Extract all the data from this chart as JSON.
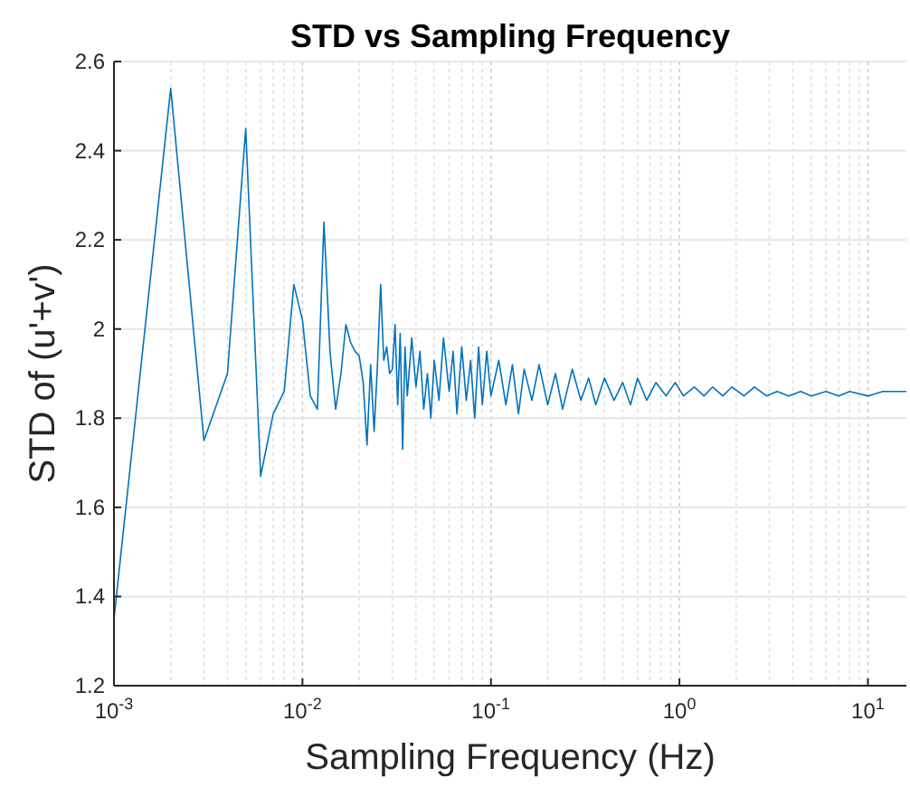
{
  "chart_data": {
    "type": "line",
    "title": "STD  vs Sampling Frequency",
    "xlabel": "Sampling Frequency (Hz)",
    "ylabel": "STD of (u'+v')",
    "log": "x",
    "grid": true,
    "xlim": [
      0.001,
      16
    ],
    "ylim": [
      1.2,
      2.6
    ],
    "xticks": [
      {
        "value": 0.001,
        "label": "10$^{-3}$"
      },
      {
        "value": 0.01,
        "label": "10$^{-2}$"
      },
      {
        "value": 0.1,
        "label": "10$^{-1}$"
      },
      {
        "value": 1,
        "label": "10$^{0}$"
      },
      {
        "value": 10,
        "label": "10$^{1}$"
      }
    ],
    "yticks": [
      1.2,
      1.4,
      1.6,
      1.8,
      2,
      2.2,
      2.4,
      2.6
    ],
    "series": [
      {
        "color": "#0072bd",
        "x": [
          0.001,
          0.002,
          0.003,
          0.004,
          0.005,
          0.006,
          0.007,
          0.008,
          0.009,
          0.01,
          0.011,
          0.012,
          0.013,
          0.014,
          0.015,
          0.016,
          0.017,
          0.018,
          0.019,
          0.02,
          0.021,
          0.022,
          0.023,
          0.024,
          0.025,
          0.026,
          0.027,
          0.028,
          0.029,
          0.03,
          0.031,
          0.032,
          0.033,
          0.034,
          0.035,
          0.036,
          0.038,
          0.04,
          0.042,
          0.044,
          0.046,
          0.048,
          0.05,
          0.053,
          0.056,
          0.06,
          0.063,
          0.066,
          0.07,
          0.074,
          0.078,
          0.082,
          0.086,
          0.09,
          0.095,
          0.1,
          0.11,
          0.12,
          0.13,
          0.14,
          0.15,
          0.165,
          0.18,
          0.2,
          0.22,
          0.24,
          0.27,
          0.3,
          0.33,
          0.36,
          0.4,
          0.45,
          0.5,
          0.55,
          0.6,
          0.67,
          0.75,
          0.85,
          0.95,
          1.05,
          1.2,
          1.35,
          1.5,
          1.7,
          1.9,
          2.2,
          2.5,
          2.9,
          3.3,
          3.8,
          4.4,
          5,
          6,
          7,
          8,
          10,
          12,
          14,
          16
        ],
        "values": [
          1.35,
          2.54,
          1.75,
          1.9,
          2.45,
          1.67,
          1.81,
          1.86,
          2.1,
          2.02,
          1.85,
          1.82,
          2.24,
          1.95,
          1.82,
          1.9,
          2.01,
          1.97,
          1.95,
          1.94,
          1.88,
          1.74,
          1.92,
          1.77,
          1.92,
          2.1,
          1.93,
          1.96,
          1.9,
          1.91,
          2.01,
          1.83,
          1.99,
          1.73,
          1.96,
          1.85,
          1.98,
          1.87,
          1.95,
          1.82,
          1.9,
          1.8,
          1.93,
          1.84,
          1.98,
          1.86,
          1.95,
          1.81,
          1.96,
          1.84,
          1.93,
          1.8,
          1.96,
          1.83,
          1.95,
          1.85,
          1.93,
          1.83,
          1.92,
          1.81,
          1.91,
          1.84,
          1.92,
          1.83,
          1.9,
          1.82,
          1.91,
          1.84,
          1.89,
          1.83,
          1.89,
          1.84,
          1.88,
          1.83,
          1.89,
          1.84,
          1.88,
          1.85,
          1.88,
          1.85,
          1.87,
          1.85,
          1.87,
          1.85,
          1.87,
          1.85,
          1.87,
          1.85,
          1.86,
          1.85,
          1.86,
          1.85,
          1.86,
          1.85,
          1.86,
          1.85,
          1.86,
          1.86,
          1.86
        ]
      }
    ]
  }
}
